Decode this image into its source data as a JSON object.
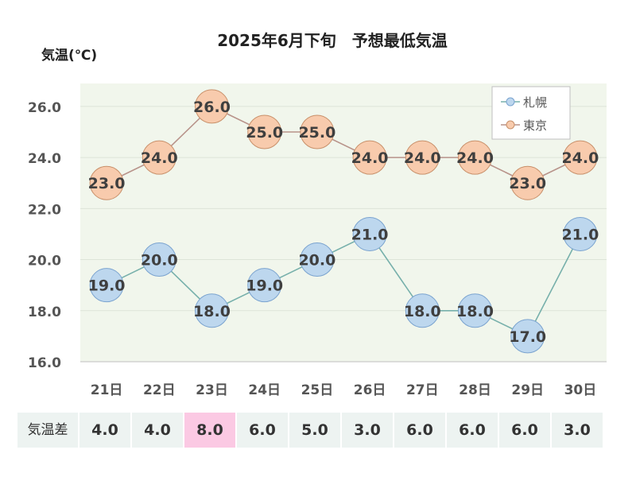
{
  "chart_data": {
    "type": "line",
    "title": "2025年6月下旬　予想最低気温",
    "ylabel": "気温(℃)",
    "xlabel": "",
    "categories": [
      "21日",
      "22日",
      "23日",
      "24日",
      "25日",
      "26日",
      "27日",
      "28日",
      "29日",
      "30日"
    ],
    "ylim": [
      16,
      26.9
    ],
    "yticks": [
      "16.0",
      "18.0",
      "20.0",
      "22.0",
      "24.0",
      "26.0"
    ],
    "ytick_values": [
      16,
      18,
      20,
      22,
      24,
      26
    ],
    "grid": "horizontal",
    "legend_position": "top-right",
    "series": [
      {
        "name": "札幌",
        "values": [
          19.0,
          20.0,
          18.0,
          19.0,
          20.0,
          21.0,
          18.0,
          18.0,
          17.0,
          21.0
        ],
        "labels": [
          "19.0",
          "20.0",
          "18.0",
          "19.0",
          "20.0",
          "21.0",
          "18.0",
          "18.0",
          "17.0",
          "21.0"
        ]
      },
      {
        "name": "東京",
        "values": [
          23.0,
          24.0,
          26.0,
          25.0,
          25.0,
          24.0,
          24.0,
          24.0,
          23.0,
          24.0
        ],
        "labels": [
          "23.0",
          "24.0",
          "26.0",
          "25.0",
          "25.0",
          "24.0",
          "24.0",
          "24.0",
          "23.0",
          "24.0"
        ]
      }
    ]
  },
  "diff_row": {
    "label": "気温差",
    "values": [
      "4.0",
      "4.0",
      "8.0",
      "6.0",
      "5.0",
      "3.0",
      "6.0",
      "6.0",
      "6.0",
      "3.0"
    ],
    "highlight_index": 2
  },
  "colors": {
    "plot_bg": "#f1f6ec",
    "gridline": "#dde4d8",
    "sapporo_fill": "#bdd7ee",
    "sapporo_stroke": "#7aa3cf",
    "sapporo_line": "#77b0ab",
    "tokyo_fill": "#f8cbad",
    "tokyo_stroke": "#c8906a",
    "tokyo_line": "#b8938a",
    "highlight": "#fbc9e3",
    "table_bg": "#edf3f1"
  }
}
